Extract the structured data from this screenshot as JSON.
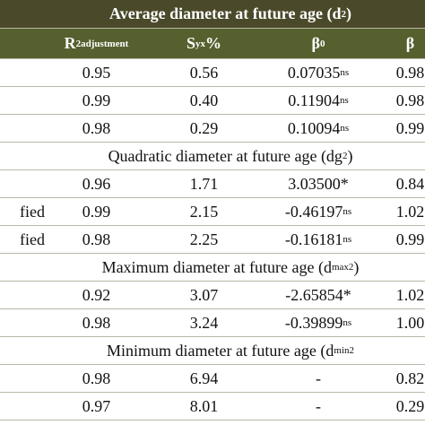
{
  "header": {
    "title": {
      "text": "Average diameter at future age (d",
      "sub": "2",
      "tail": ")"
    },
    "columns": [
      {
        "text": "R",
        "sup": "2",
        "sub": "adjustment"
      },
      {
        "text": "S",
        "sub": "yx",
        "tail": "%"
      },
      {
        "text": "β",
        "sub": "0"
      },
      {
        "text": "β"
      }
    ]
  },
  "sections": [
    {
      "rows": [
        {
          "r2": "0.95",
          "syx": "0.56",
          "b0": "0.07035",
          "b0_sup": "ns",
          "b1": "0.98"
        },
        {
          "r2": "0.99",
          "syx": "0.40",
          "b0": "0.11904",
          "b0_sup": "ns",
          "b1": "0.98"
        },
        {
          "r2": "0.98",
          "syx": "0.29",
          "b0": "0.10094",
          "b0_sup": "ns",
          "b1": "0.99"
        }
      ]
    },
    {
      "title": {
        "text": "Quadratic diameter at future age (dg",
        "sub": "2",
        "tail": ")"
      },
      "rows": [
        {
          "r2": "0.96",
          "syx": "1.71",
          "b0": "3.03500*",
          "b1": "0.84"
        },
        {
          "label": "fied",
          "r2": "0.99",
          "syx": "2.15",
          "b0": "-0.46197",
          "b0_sup": "ns",
          "b1": "1.02"
        },
        {
          "label": "fied",
          "r2": "0.98",
          "syx": "2.25",
          "b0": "-0.16181",
          "b0_sup": "ns",
          "b1": "0.99"
        }
      ]
    },
    {
      "title": {
        "text": "Maximum diameter at future age (d",
        "sub": "max2",
        "tail": ")"
      },
      "rows": [
        {
          "r2": "0.92",
          "syx": "3.07",
          "b0": "-2.65854*",
          "b1": "1.02"
        },
        {
          "r2": "0.98",
          "syx": "3.24",
          "b0": "-0.39899",
          "b0_sup": "ns",
          "b1": "1.00"
        }
      ]
    },
    {
      "title": {
        "text": "Minimum diameter at future age (d",
        "sub": "min2"
      },
      "rows": [
        {
          "r2": "0.98",
          "syx": "6.94",
          "b0": "-",
          "b1": "0.82"
        },
        {
          "r2": "0.97",
          "syx": "8.01",
          "b0": "-",
          "b1": "0.29"
        }
      ]
    }
  ]
}
